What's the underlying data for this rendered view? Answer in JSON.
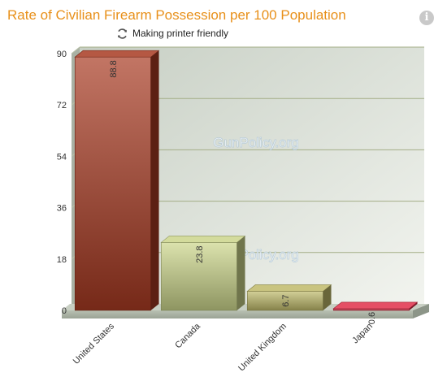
{
  "header": {
    "title": "Rate of Civilian Firearm Possession per 100 Population",
    "printer_label": "Making printer friendly",
    "info_icon": "info-icon",
    "refresh_icon": "refresh-icon"
  },
  "watermark": "GunPolicy.org",
  "chart_data": {
    "type": "bar",
    "title": "Rate of Civilian Firearm Possession per 100 Population",
    "xlabel": "",
    "ylabel": "",
    "categories": [
      "United States",
      "Canada",
      "United Kingdom",
      "Japan"
    ],
    "values": [
      88.8,
      23.8,
      6.7,
      0.6
    ],
    "value_labels": [
      "88.8",
      "23.8",
      "6.7",
      "0.6"
    ],
    "ylim": [
      0,
      90
    ],
    "yticks": [
      0,
      18,
      36,
      54,
      72,
      90
    ],
    "grid": true,
    "legend": "none",
    "colors": [
      "#a83a22",
      "#cbd58a",
      "#bfba6a",
      "#e0304a"
    ]
  }
}
